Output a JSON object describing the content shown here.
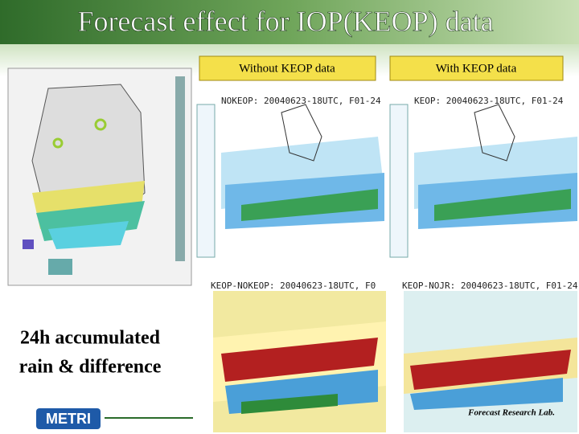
{
  "header": {
    "title": "Forecast effect for IOP(KEOP) data"
  },
  "panels": {
    "without_label": "Without KEOP data",
    "with_label": "With KEOP data"
  },
  "maps": [
    {
      "label": "NOKEOP: 20040623-18UTC, F01-24"
    },
    {
      "label": "KEOP: 20040623-18UTC, F01-24"
    },
    {
      "label": "KEOP-NOKEOP: 20040623-18UTC, F0"
    },
    {
      "label": "KEOP-NOJR: 20040623-18UTC, F01-24"
    }
  ],
  "caption": [
    "24h accumulated",
    "rain & difference"
  ],
  "footer": {
    "logo": "METRI",
    "lab": "Forecast Research Lab."
  }
}
